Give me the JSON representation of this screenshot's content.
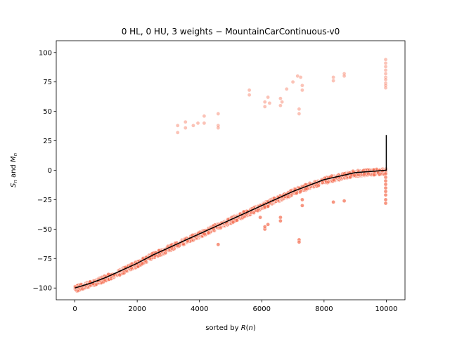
{
  "chart_data": {
    "type": "scatter",
    "title": "0 HL, 0 HU, 3 weights − MountainCarContinuous-v0",
    "xlabel": "sorted by R(n)",
    "ylabel": "S_n and M_n",
    "xlim": [
      -600,
      10600
    ],
    "ylim": [
      -110,
      110
    ],
    "x_ticks": [
      0,
      2000,
      4000,
      6000,
      8000,
      10000
    ],
    "y_ticks": [
      -100,
      -75,
      -50,
      -25,
      0,
      25,
      50,
      75,
      100
    ],
    "x_tick_labels": [
      "0",
      "2000",
      "4000",
      "6000",
      "8000",
      "10000"
    ],
    "y_tick_labels": [
      "−100",
      "−75",
      "−50",
      "−25",
      "0",
      "25",
      "50",
      "75",
      "100"
    ],
    "grid": false,
    "colors": {
      "points": "#f4694b",
      "line": "#000000"
    },
    "series": [
      {
        "kind": "line",
        "x": [
          0,
          500,
          1000,
          1500,
          2000,
          2500,
          3000,
          3500,
          4000,
          4500,
          5000,
          5500,
          6000,
          6500,
          7000,
          7500,
          8000,
          8500,
          9000,
          9500,
          9990,
          10000,
          10000
        ],
        "y": [
          -100,
          -96,
          -91,
          -85,
          -79,
          -72,
          -66,
          -60,
          -54,
          -48,
          -42,
          -36,
          -30,
          -24,
          -18,
          -13,
          -8,
          -5,
          -2,
          -1,
          0,
          0,
          30
        ]
      },
      {
        "kind": "scatter",
        "band": {
          "x": [
            0,
            500,
            1000,
            1500,
            2000,
            2500,
            3000,
            3500,
            4000,
            4500,
            5000,
            5500,
            6000,
            6500,
            7000,
            7500,
            8000,
            8500,
            9000,
            9500,
            10000
          ],
          "y": [
            -100,
            -96,
            -91,
            -85,
            -79,
            -72,
            -66,
            -60,
            -54,
            -48,
            -42,
            -36,
            -30,
            -24,
            -18,
            -13,
            -8,
            -5,
            -2,
            -1,
            0
          ]
        },
        "outliers": [
          [
            3300,
            38
          ],
          [
            3300,
            32
          ],
          [
            3550,
            41
          ],
          [
            3550,
            36
          ],
          [
            3800,
            38
          ],
          [
            3950,
            40
          ],
          [
            4150,
            46
          ],
          [
            4150,
            40
          ],
          [
            4600,
            48
          ],
          [
            4600,
            38
          ],
          [
            4600,
            36
          ],
          [
            5600,
            68
          ],
          [
            5600,
            64
          ],
          [
            6100,
            58
          ],
          [
            6100,
            54
          ],
          [
            6200,
            62
          ],
          [
            6250,
            57
          ],
          [
            6600,
            61
          ],
          [
            6650,
            58
          ],
          [
            6600,
            55
          ],
          [
            6800,
            69
          ],
          [
            7000,
            75
          ],
          [
            7150,
            80
          ],
          [
            7200,
            52
          ],
          [
            7200,
            48
          ],
          [
            7250,
            79
          ],
          [
            7300,
            68
          ],
          [
            7300,
            72
          ],
          [
            8300,
            79
          ],
          [
            8300,
            76
          ],
          [
            8650,
            82
          ],
          [
            8650,
            80
          ],
          [
            9980,
            94
          ],
          [
            9980,
            91
          ],
          [
            9980,
            88
          ],
          [
            9980,
            85
          ],
          [
            9980,
            82
          ],
          [
            9980,
            79
          ],
          [
            9980,
            77
          ],
          [
            9980,
            74
          ],
          [
            9980,
            72
          ],
          [
            9980,
            70
          ],
          [
            9980,
            -3
          ],
          [
            9980,
            -6
          ],
          [
            9980,
            -9
          ],
          [
            9980,
            -12
          ],
          [
            9980,
            -15
          ],
          [
            9980,
            -18
          ],
          [
            9980,
            -21
          ],
          [
            9980,
            -25
          ],
          [
            9980,
            -28
          ],
          [
            6100,
            -50
          ],
          [
            6100,
            -48
          ],
          [
            6200,
            -46
          ],
          [
            6600,
            -40
          ],
          [
            6600,
            -43
          ],
          [
            7200,
            -59
          ],
          [
            7200,
            -61
          ],
          [
            4600,
            -63
          ],
          [
            5950,
            -40
          ],
          [
            8300,
            -27
          ],
          [
            8650,
            -26
          ],
          [
            7300,
            -25
          ],
          [
            7300,
            -30
          ]
        ]
      }
    ]
  }
}
